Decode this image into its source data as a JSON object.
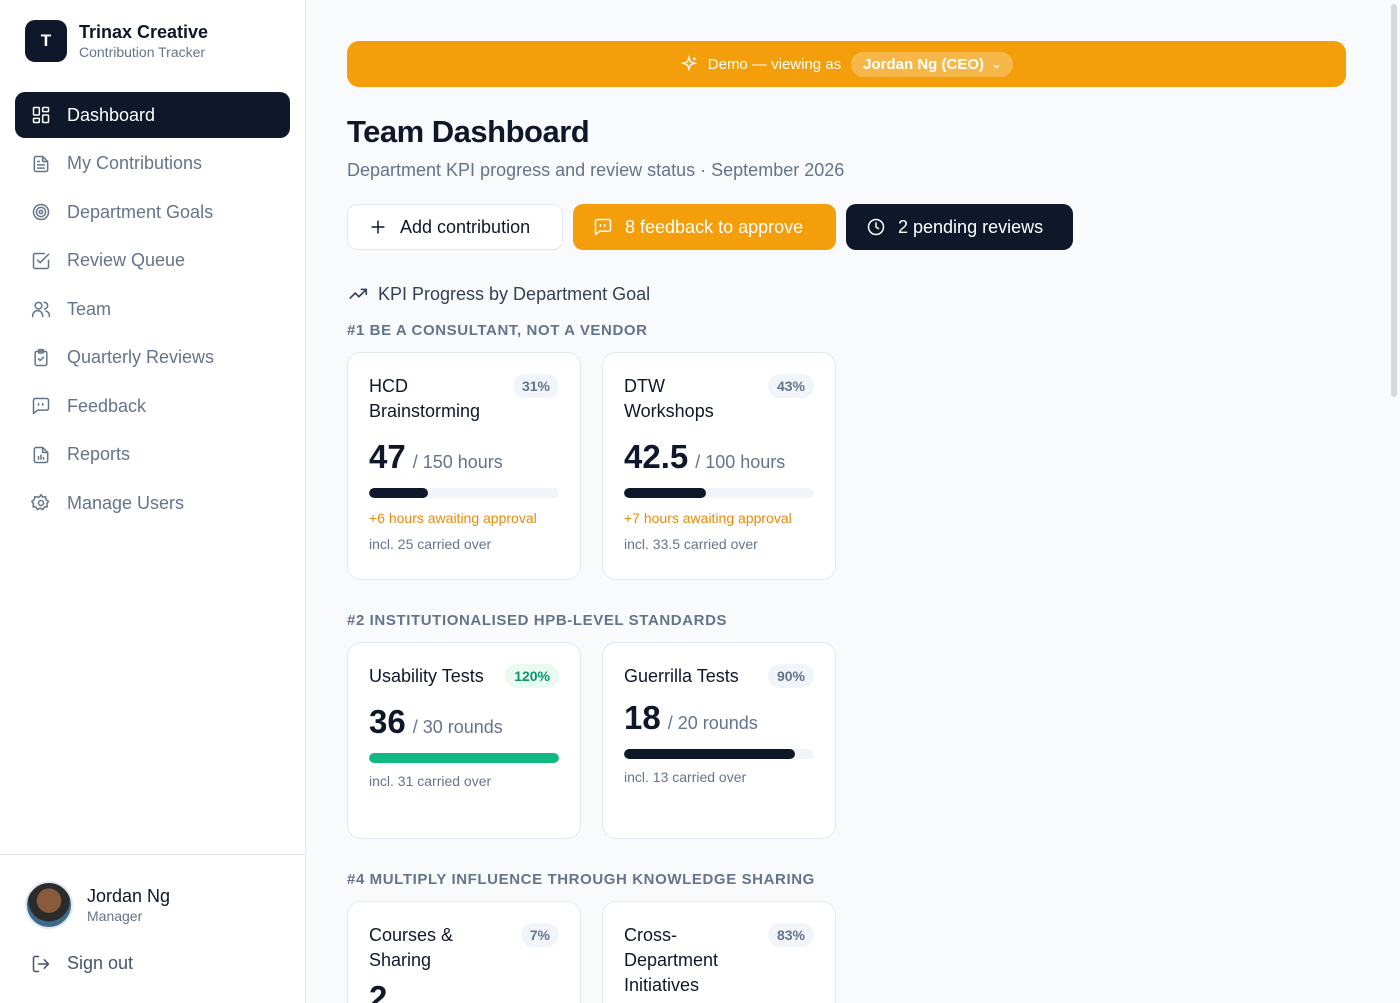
{
  "brand": {
    "logo_letter": "T",
    "name": "Trinax Creative",
    "subtitle": "Contribution Tracker"
  },
  "nav": [
    {
      "label": "Dashboard",
      "icon": "grid-icon",
      "active": true
    },
    {
      "label": "My Contributions",
      "icon": "document-icon"
    },
    {
      "label": "Department Goals",
      "icon": "target-icon"
    },
    {
      "label": "Review Queue",
      "icon": "check-square-icon"
    },
    {
      "label": "Team",
      "icon": "users-icon"
    },
    {
      "label": "Quarterly Reviews",
      "icon": "clipboard-icon"
    },
    {
      "label": "Feedback",
      "icon": "message-icon"
    },
    {
      "label": "Reports",
      "icon": "report-icon"
    },
    {
      "label": "Manage Users",
      "icon": "gear-icon"
    }
  ],
  "user": {
    "name": "Jordan Ng",
    "role": "Manager",
    "signout": "Sign out"
  },
  "banner": {
    "text": "Demo — viewing as",
    "role": "Jordan Ng (CEO)"
  },
  "page": {
    "title": "Team Dashboard",
    "subtitle": "Department KPI progress and review status · September 2026"
  },
  "actions": {
    "add": "Add contribution",
    "feedback": "8 feedback to approve",
    "reviews": "2 pending reviews"
  },
  "kpi_section": {
    "title": "KPI Progress by Department Goal"
  },
  "goals": [
    {
      "title": "#1 BE A CONSULTANT, NOT A VENDOR",
      "cards": [
        {
          "name": "HCD Brainstorming",
          "percent": "31%",
          "value": "47",
          "unit": "/ 150 hours",
          "progress": 0.31,
          "pending": "+6 hours awaiting approval",
          "carried": "incl. 25 carried over"
        },
        {
          "name": "DTW Workshops",
          "percent": "43%",
          "value": "42.5",
          "unit": "/ 100 hours",
          "progress": 0.43,
          "pending": "+7 hours awaiting approval",
          "carried": "incl. 33.5 carried over"
        }
      ]
    },
    {
      "title": "#2 INSTITUTIONALISED HPB-LEVEL STANDARDS",
      "cards": [
        {
          "name": "Usability Tests",
          "percent": "120%",
          "value": "36",
          "unit": "/ 30 rounds",
          "progress": 1.0,
          "carried": "incl. 31 carried over",
          "complete": true
        },
        {
          "name": "Guerrilla Tests",
          "percent": "90%",
          "value": "18",
          "unit": "/ 20 rounds",
          "progress": 0.9,
          "carried": "incl. 13 carried over"
        }
      ]
    },
    {
      "title": "#4 MULTIPLY INFLUENCE THROUGH KNOWLEDGE SHARING",
      "cards": [
        {
          "name": "Courses & Sharing",
          "percent": "7%",
          "value": "2"
        },
        {
          "name": "Cross-Department Initiatives",
          "percent": "83%"
        }
      ]
    }
  ],
  "colors": {
    "accent": "#f59e0b",
    "dark": "#0f172a",
    "success": "#10b981",
    "pending": "#ea8a0c"
  }
}
